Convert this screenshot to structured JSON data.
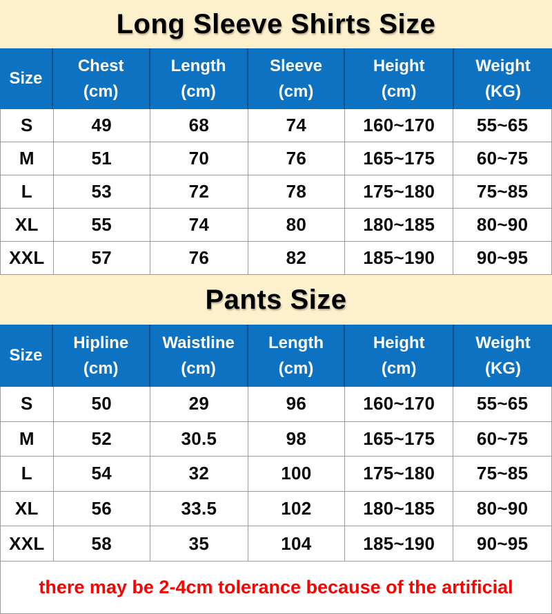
{
  "colors": {
    "band_background": "#fdf0cd",
    "header_background": "#0d72c1",
    "header_divider": "#0b5190",
    "grid_line": "#9b9b9b",
    "note_color": "#ff0000"
  },
  "shirts": {
    "title": "Long Sleeve Shirts Size",
    "columns": [
      {
        "label": "Size",
        "unit": ""
      },
      {
        "label": "Chest",
        "unit": "(cm)"
      },
      {
        "label": "Length",
        "unit": "(cm)"
      },
      {
        "label": "Sleeve",
        "unit": "(cm)"
      },
      {
        "label": "Height",
        "unit": "(cm)"
      },
      {
        "label": "Weight",
        "unit": "(KG)"
      }
    ],
    "rows": [
      [
        "S",
        "49",
        "68",
        "74",
        "160~170",
        "55~65"
      ],
      [
        "M",
        "51",
        "70",
        "76",
        "165~175",
        "60~75"
      ],
      [
        "L",
        "53",
        "72",
        "78",
        "175~180",
        "75~85"
      ],
      [
        "XL",
        "55",
        "74",
        "80",
        "180~185",
        "80~90"
      ],
      [
        "XXL",
        "57",
        "76",
        "82",
        "185~190",
        "90~95"
      ]
    ]
  },
  "pants": {
    "title": "Pants Size",
    "columns": [
      {
        "label": "Size",
        "unit": ""
      },
      {
        "label": "Hipline",
        "unit": "(cm)"
      },
      {
        "label": "Waistline",
        "unit": "(cm)"
      },
      {
        "label": "Length",
        "unit": "(cm)"
      },
      {
        "label": "Height",
        "unit": "(cm)"
      },
      {
        "label": "Weight",
        "unit": "(KG)"
      }
    ],
    "rows": [
      [
        "S",
        "50",
        "29",
        "96",
        "160~170",
        "55~65"
      ],
      [
        "M",
        "52",
        "30.5",
        "98",
        "165~175",
        "60~75"
      ],
      [
        "L",
        "54",
        "32",
        "100",
        "175~180",
        "75~85"
      ],
      [
        "XL",
        "56",
        "33.5",
        "102",
        "180~185",
        "80~90"
      ],
      [
        "XXL",
        "58",
        "35",
        "104",
        "185~190",
        "90~95"
      ]
    ]
  },
  "note": "there may be 2-4cm tolerance because of the artificial"
}
